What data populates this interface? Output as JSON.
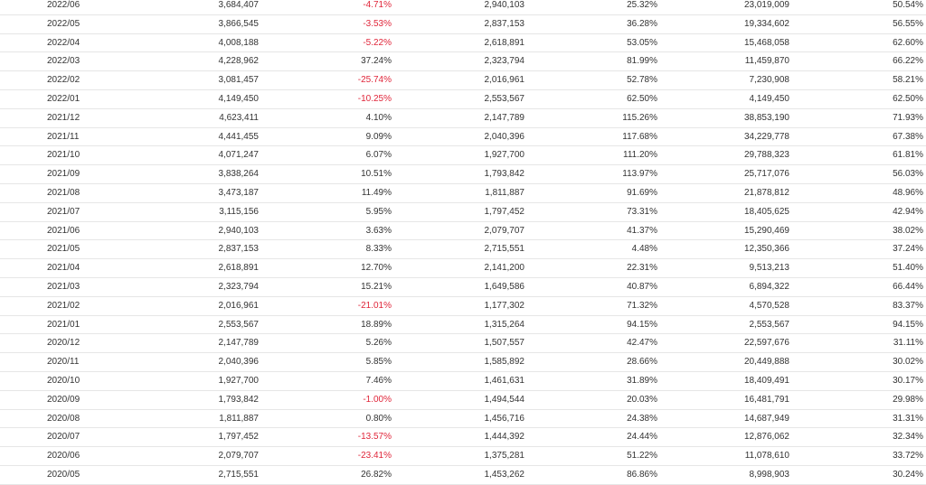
{
  "colors": {
    "negative": "#e0263a",
    "text": "#333333",
    "divider": "#e6e6e6"
  },
  "rows": [
    {
      "month": "2022/06",
      "revenue": "3,684,407",
      "mom": "-4.71%",
      "last_year": "2,940,103",
      "yoy": "25.32%",
      "cumulative": "23,019,009",
      "cum_yoy": "50.54%"
    },
    {
      "month": "2022/05",
      "revenue": "3,866,545",
      "mom": "-3.53%",
      "last_year": "2,837,153",
      "yoy": "36.28%",
      "cumulative": "19,334,602",
      "cum_yoy": "56.55%"
    },
    {
      "month": "2022/04",
      "revenue": "4,008,188",
      "mom": "-5.22%",
      "last_year": "2,618,891",
      "yoy": "53.05%",
      "cumulative": "15,468,058",
      "cum_yoy": "62.60%"
    },
    {
      "month": "2022/03",
      "revenue": "4,228,962",
      "mom": "37.24%",
      "last_year": "2,323,794",
      "yoy": "81.99%",
      "cumulative": "11,459,870",
      "cum_yoy": "66.22%"
    },
    {
      "month": "2022/02",
      "revenue": "3,081,457",
      "mom": "-25.74%",
      "last_year": "2,016,961",
      "yoy": "52.78%",
      "cumulative": "7,230,908",
      "cum_yoy": "58.21%"
    },
    {
      "month": "2022/01",
      "revenue": "4,149,450",
      "mom": "-10.25%",
      "last_year": "2,553,567",
      "yoy": "62.50%",
      "cumulative": "4,149,450",
      "cum_yoy": "62.50%"
    },
    {
      "month": "2021/12",
      "revenue": "4,623,411",
      "mom": "4.10%",
      "last_year": "2,147,789",
      "yoy": "115.26%",
      "cumulative": "38,853,190",
      "cum_yoy": "71.93%"
    },
    {
      "month": "2021/11",
      "revenue": "4,441,455",
      "mom": "9.09%",
      "last_year": "2,040,396",
      "yoy": "117.68%",
      "cumulative": "34,229,778",
      "cum_yoy": "67.38%"
    },
    {
      "month": "2021/10",
      "revenue": "4,071,247",
      "mom": "6.07%",
      "last_year": "1,927,700",
      "yoy": "111.20%",
      "cumulative": "29,788,323",
      "cum_yoy": "61.81%"
    },
    {
      "month": "2021/09",
      "revenue": "3,838,264",
      "mom": "10.51%",
      "last_year": "1,793,842",
      "yoy": "113.97%",
      "cumulative": "25,717,076",
      "cum_yoy": "56.03%"
    },
    {
      "month": "2021/08",
      "revenue": "3,473,187",
      "mom": "11.49%",
      "last_year": "1,811,887",
      "yoy": "91.69%",
      "cumulative": "21,878,812",
      "cum_yoy": "48.96%"
    },
    {
      "month": "2021/07",
      "revenue": "3,115,156",
      "mom": "5.95%",
      "last_year": "1,797,452",
      "yoy": "73.31%",
      "cumulative": "18,405,625",
      "cum_yoy": "42.94%"
    },
    {
      "month": "2021/06",
      "revenue": "2,940,103",
      "mom": "3.63%",
      "last_year": "2,079,707",
      "yoy": "41.37%",
      "cumulative": "15,290,469",
      "cum_yoy": "38.02%"
    },
    {
      "month": "2021/05",
      "revenue": "2,837,153",
      "mom": "8.33%",
      "last_year": "2,715,551",
      "yoy": "4.48%",
      "cumulative": "12,350,366",
      "cum_yoy": "37.24%"
    },
    {
      "month": "2021/04",
      "revenue": "2,618,891",
      "mom": "12.70%",
      "last_year": "2,141,200",
      "yoy": "22.31%",
      "cumulative": "9,513,213",
      "cum_yoy": "51.40%"
    },
    {
      "month": "2021/03",
      "revenue": "2,323,794",
      "mom": "15.21%",
      "last_year": "1,649,586",
      "yoy": "40.87%",
      "cumulative": "6,894,322",
      "cum_yoy": "66.44%"
    },
    {
      "month": "2021/02",
      "revenue": "2,016,961",
      "mom": "-21.01%",
      "last_year": "1,177,302",
      "yoy": "71.32%",
      "cumulative": "4,570,528",
      "cum_yoy": "83.37%"
    },
    {
      "month": "2021/01",
      "revenue": "2,553,567",
      "mom": "18.89%",
      "last_year": "1,315,264",
      "yoy": "94.15%",
      "cumulative": "2,553,567",
      "cum_yoy": "94.15%"
    },
    {
      "month": "2020/12",
      "revenue": "2,147,789",
      "mom": "5.26%",
      "last_year": "1,507,557",
      "yoy": "42.47%",
      "cumulative": "22,597,676",
      "cum_yoy": "31.11%"
    },
    {
      "month": "2020/11",
      "revenue": "2,040,396",
      "mom": "5.85%",
      "last_year": "1,585,892",
      "yoy": "28.66%",
      "cumulative": "20,449,888",
      "cum_yoy": "30.02%"
    },
    {
      "month": "2020/10",
      "revenue": "1,927,700",
      "mom": "7.46%",
      "last_year": "1,461,631",
      "yoy": "31.89%",
      "cumulative": "18,409,491",
      "cum_yoy": "30.17%"
    },
    {
      "month": "2020/09",
      "revenue": "1,793,842",
      "mom": "-1.00%",
      "last_year": "1,494,544",
      "yoy": "20.03%",
      "cumulative": "16,481,791",
      "cum_yoy": "29.98%"
    },
    {
      "month": "2020/08",
      "revenue": "1,811,887",
      "mom": "0.80%",
      "last_year": "1,456,716",
      "yoy": "24.38%",
      "cumulative": "14,687,949",
      "cum_yoy": "31.31%"
    },
    {
      "month": "2020/07",
      "revenue": "1,797,452",
      "mom": "-13.57%",
      "last_year": "1,444,392",
      "yoy": "24.44%",
      "cumulative": "12,876,062",
      "cum_yoy": "32.34%"
    },
    {
      "month": "2020/06",
      "revenue": "2,079,707",
      "mom": "-23.41%",
      "last_year": "1,375,281",
      "yoy": "51.22%",
      "cumulative": "11,078,610",
      "cum_yoy": "33.72%"
    },
    {
      "month": "2020/05",
      "revenue": "2,715,551",
      "mom": "26.82%",
      "last_year": "1,453,262",
      "yoy": "86.86%",
      "cumulative": "8,998,903",
      "cum_yoy": "30.24%"
    }
  ]
}
